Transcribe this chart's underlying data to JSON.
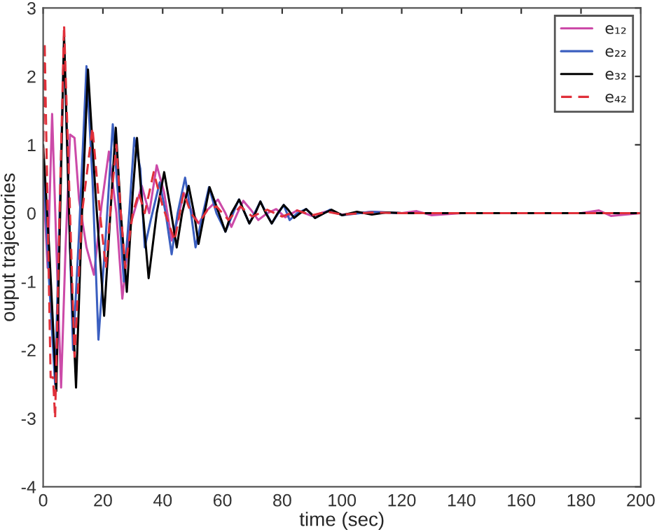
{
  "chart_data": {
    "type": "line",
    "xlabel": "time (sec)",
    "ylabel": "ouput trajectories",
    "xlim": [
      0,
      200
    ],
    "ylim": [
      -4,
      3
    ],
    "xticks": [
      0,
      20,
      40,
      60,
      80,
      100,
      120,
      140,
      160,
      180,
      200
    ],
    "yticks": [
      -4,
      -3,
      -2,
      -1,
      0,
      1,
      2,
      3
    ],
    "grid": false,
    "legend": "top right",
    "marker": "none",
    "series": [
      {
        "name": "e₁₂",
        "color": "#cc4aa8",
        "line_style": "solid",
        "x": [
          0,
          1.5,
          3,
          4.5,
          6,
          7.5,
          9,
          10.5,
          12,
          14.5,
          17,
          19.5,
          22,
          24.5,
          26.5,
          29,
          33,
          35.5,
          38,
          40.5,
          43,
          45,
          47,
          49.5,
          52,
          55,
          58.5,
          61,
          63,
          65,
          67,
          69.5,
          72,
          75,
          78,
          81,
          85,
          90,
          95,
          100,
          110,
          120,
          125,
          130,
          140,
          160,
          180,
          186,
          190,
          200
        ],
        "values": [
          0.5,
          -0.8,
          1.45,
          -0.6,
          -2.55,
          -0.5,
          1.15,
          1.1,
          0.2,
          -0.5,
          -0.9,
          0.1,
          0.9,
          0.0,
          -1.25,
          -0.2,
          0.4,
          0.0,
          0.7,
          0.3,
          -0.4,
          -0.1,
          0.3,
          0.05,
          -0.15,
          0.05,
          0.2,
          0.0,
          -0.2,
          0.0,
          0.18,
          0.05,
          -0.1,
          0.0,
          0.06,
          -0.06,
          0.04,
          -0.04,
          0.03,
          -0.02,
          0.02,
          0.0,
          0.03,
          -0.03,
          0.0,
          0.0,
          0.0,
          0.04,
          -0.04,
          0.0
        ]
      },
      {
        "name": "e₂₂",
        "color": "#3b5fc0",
        "line_style": "solid",
        "x": [
          0,
          2,
          4,
          7,
          10,
          12,
          14.5,
          16.5,
          18.5,
          21,
          23.3,
          25,
          27,
          28.8,
          30.5,
          32.5,
          34,
          36,
          39,
          41,
          43,
          45,
          47.5,
          49.5,
          51,
          53,
          55.5,
          58,
          61,
          65.5,
          69,
          72.7,
          76.5,
          80.5,
          82.5,
          85,
          88,
          91,
          96,
          100,
          110,
          120,
          200
        ],
        "values": [
          0.8,
          -1.0,
          -2.5,
          2.5,
          -2.0,
          -0.3,
          2.15,
          0.5,
          -1.85,
          -0.3,
          1.3,
          0.3,
          -1.0,
          0.0,
          1.1,
          0.65,
          -0.5,
          -0.1,
          0.45,
          0.0,
          -0.6,
          0.0,
          0.52,
          0.0,
          -0.5,
          -0.1,
          0.38,
          0.0,
          -0.27,
          0.2,
          -0.15,
          0.17,
          -0.15,
          0.12,
          -0.1,
          0.0,
          0.06,
          -0.07,
          0.05,
          -0.03,
          0.02,
          0.0,
          0.0
        ]
      },
      {
        "name": "e₃₂",
        "color": "#000000",
        "line_style": "solid",
        "x": [
          0,
          2,
          4.4,
          7,
          9,
          11,
          13,
          15,
          17.5,
          20.4,
          22.5,
          24.3,
          26,
          28,
          30,
          31.4,
          33,
          35.3,
          38,
          40.5,
          42.5,
          44.7,
          46.5,
          48.7,
          50.5,
          52,
          54,
          55.7,
          58,
          61,
          63,
          65.6,
          67,
          69,
          71,
          72.7,
          74.5,
          76.5,
          78.5,
          80.5,
          82,
          84,
          86,
          88,
          89.5,
          91,
          94,
          96.5,
          100,
          105,
          110,
          115,
          120,
          200
        ],
        "values": [
          1.0,
          -0.5,
          -2.6,
          2.6,
          -0.5,
          -2.55,
          0.0,
          2.1,
          0.3,
          -1.5,
          0.0,
          1.25,
          0.0,
          -1.15,
          0.3,
          1.1,
          0.2,
          -0.95,
          0.0,
          0.6,
          0.1,
          -0.5,
          0.0,
          0.4,
          0.0,
          -0.45,
          0.0,
          0.38,
          0.1,
          -0.27,
          0.0,
          0.2,
          0.05,
          -0.15,
          0.0,
          0.17,
          0.0,
          -0.15,
          0.0,
          0.12,
          0.05,
          -0.07,
          0.0,
          0.06,
          0.0,
          -0.07,
          0.0,
          0.05,
          -0.03,
          0.02,
          -0.02,
          0.01,
          0.0,
          0.0
        ]
      },
      {
        "name": "e₄₂",
        "color": "#e0303a",
        "line_style": "dashed",
        "x": [
          0,
          0.5,
          1.5,
          2.5,
          3.3,
          4,
          5.5,
          7,
          9,
          10.5,
          13,
          16.5,
          19,
          21,
          23,
          24.5,
          26,
          27.5,
          30,
          32,
          34,
          37,
          40,
          44,
          47,
          49.5,
          52,
          55,
          58,
          62,
          66,
          70,
          75,
          80,
          85,
          90,
          95,
          100,
          110,
          120,
          200
        ],
        "values": [
          0.8,
          2.5,
          0.0,
          -2.4,
          -2.4,
          -3.0,
          0.0,
          2.75,
          0.0,
          -2.1,
          0.0,
          1.25,
          0.0,
          -0.8,
          0.3,
          1.0,
          0.0,
          -0.8,
          0.0,
          0.3,
          0.0,
          0.6,
          0.1,
          -0.4,
          0.3,
          0.0,
          -0.15,
          0.05,
          0.1,
          -0.1,
          0.1,
          -0.05,
          0.05,
          -0.05,
          0.04,
          -0.03,
          0.02,
          -0.02,
          0.01,
          0.0,
          0.0
        ]
      }
    ]
  }
}
